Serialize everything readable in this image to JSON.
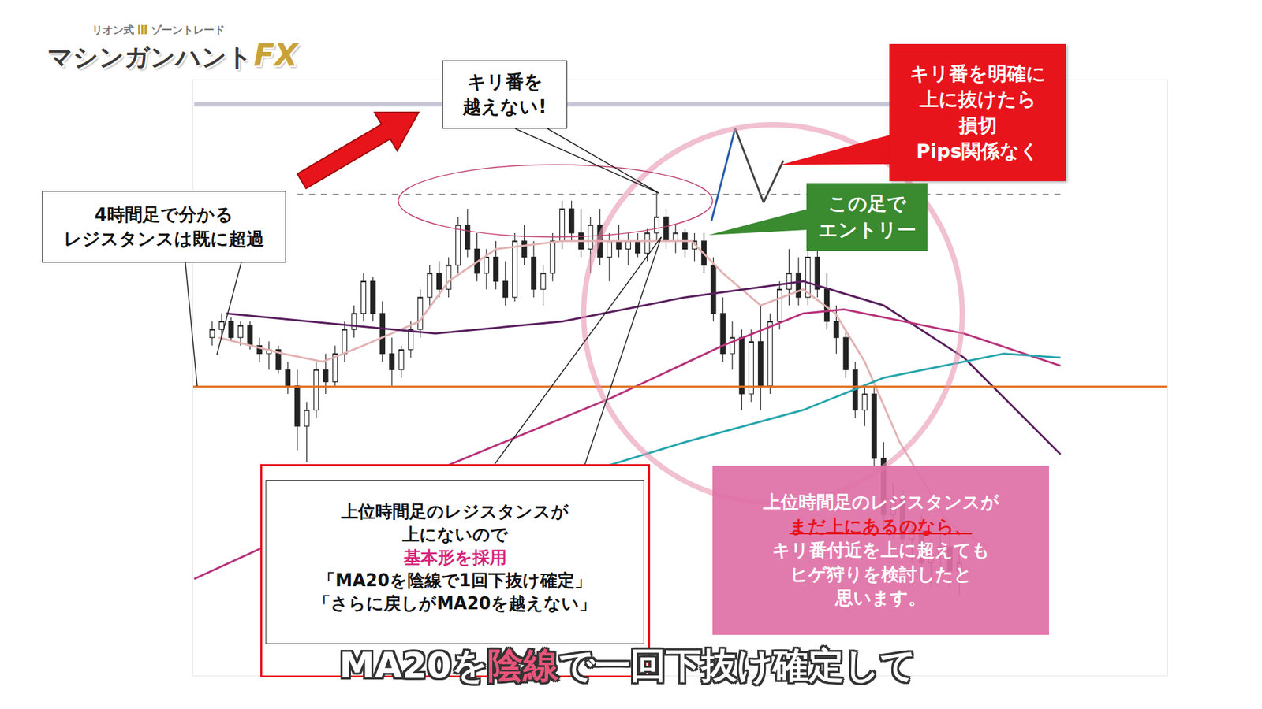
{
  "chart_data": {
    "type": "candlestick",
    "x": [
      1,
      2,
      3,
      4,
      5,
      6,
      7,
      8,
      9,
      10,
      11,
      12,
      13,
      14,
      15,
      16,
      17,
      18,
      19,
      20,
      21,
      22,
      23,
      24,
      25,
      26,
      27,
      28,
      29,
      30,
      31,
      32,
      33,
      34,
      35,
      36,
      37,
      38,
      39,
      40,
      41,
      42,
      43,
      44,
      45,
      46,
      47,
      48,
      49,
      50,
      51,
      52,
      53,
      54,
      55,
      56,
      57,
      58,
      59,
      60,
      61,
      62,
      63,
      64,
      65,
      66,
      67,
      68,
      69,
      70,
      71,
      72,
      73,
      74,
      75,
      76,
      77,
      78,
      79,
      80
    ],
    "open": [
      36,
      38,
      40,
      36,
      39,
      34,
      32,
      33,
      28,
      24,
      14,
      18,
      28,
      25,
      32,
      38,
      42,
      50,
      42,
      32,
      28,
      33,
      38,
      46,
      52,
      48,
      54,
      64,
      58,
      52,
      56,
      50,
      46,
      60,
      56,
      48,
      52,
      60,
      68,
      62,
      58,
      64,
      56,
      60,
      58,
      60,
      57,
      62,
      66,
      60,
      62,
      58,
      60,
      54,
      42,
      32,
      36,
      22,
      35,
      24,
      40,
      48,
      52,
      46,
      56,
      48,
      40,
      36,
      28,
      18,
      22,
      6,
      -8,
      -4,
      -14,
      -12,
      -20,
      -18,
      -16,
      -22
    ],
    "high": [
      40,
      42,
      41,
      40,
      40,
      36,
      35,
      34,
      30,
      28,
      20,
      30,
      32,
      34,
      40,
      44,
      52,
      51,
      45,
      36,
      34,
      40,
      48,
      54,
      55,
      56,
      66,
      68,
      62,
      58,
      60,
      55,
      62,
      64,
      60,
      54,
      62,
      70,
      70,
      68,
      66,
      68,
      62,
      64,
      62,
      62,
      63,
      72.4,
      68,
      64,
      63,
      62,
      62,
      56,
      46,
      40,
      38,
      38,
      44,
      42,
      50,
      58,
      56,
      58,
      58,
      52,
      44,
      38,
      30,
      24,
      24,
      10,
      0,
      -2,
      -10,
      -8,
      -14,
      -12,
      -10,
      -16
    ],
    "low": [
      34,
      36,
      35,
      34,
      33,
      30,
      28,
      27,
      22,
      8,
      5,
      16,
      22,
      24,
      30,
      36,
      40,
      40,
      30,
      24,
      26,
      31,
      36,
      44,
      46,
      46,
      52,
      56,
      50,
      48,
      48,
      44,
      45,
      54,
      46,
      44,
      50,
      58,
      60,
      56,
      52,
      54,
      50,
      56,
      54,
      56,
      55,
      60,
      58,
      57,
      56,
      55,
      52,
      40,
      30,
      28,
      18,
      20,
      18,
      22,
      38,
      44,
      44,
      44,
      46,
      38,
      32,
      26,
      16,
      14,
      4,
      -12,
      -14,
      -16,
      -20,
      -24,
      -26,
      -24,
      -26,
      -28
    ],
    "close": [
      38,
      40,
      36,
      39,
      34,
      32,
      33,
      28,
      24,
      14,
      18,
      28,
      25,
      32,
      38,
      42,
      50,
      42,
      32,
      28,
      33,
      38,
      46,
      52,
      48,
      54,
      64,
      58,
      52,
      56,
      50,
      46,
      60,
      56,
      48,
      52,
      60,
      68,
      62,
      58,
      64,
      56,
      60,
      58,
      60,
      57,
      62,
      66,
      60,
      62,
      58,
      60,
      54,
      42,
      32,
      36,
      22,
      35,
      24,
      40,
      48,
      52,
      46,
      56,
      48,
      40,
      36,
      28,
      18,
      22,
      6,
      -8,
      -4,
      -14,
      -12,
      -20,
      -18,
      -16,
      -22,
      -20
    ],
    "color": "#222222",
    "xlim": [
      -1,
      102
    ],
    "ylim": [
      -48,
      100
    ],
    "tick_labels": false,
    "grid": false,
    "series": [
      {
        "color": "#e2b3b3",
        "line_style": "solid",
        "x": [
          1.7,
          8.5,
          12.7,
          17,
          22.9,
          26,
          31,
          38,
          46.6,
          51.7,
          55,
          59,
          63.5,
          66.9,
          70,
          73.7,
          78.8,
          83
        ],
        "values": [
          36,
          32,
          30,
          34,
          40,
          50,
          58,
          60,
          60,
          60,
          52,
          44,
          48,
          42,
          30,
          10,
          -10,
          -16
        ]
      },
      {
        "color": "#5a1f5e",
        "line_style": "solid",
        "x": [
          2.5,
          24.6,
          38,
          51,
          63.5,
          72,
          80.5,
          90.7
        ],
        "values": [
          42,
          37,
          40,
          46,
          50,
          44,
          31,
          7
        ]
      },
      {
        "color": "#b8327a",
        "line_style": "solid",
        "x": [
          -0.9,
          19.5,
          43.2,
          55,
          63.5,
          67.8,
          80.5,
          90.7
        ],
        "values": [
          -24,
          -2,
          21,
          34,
          42,
          43,
          37,
          29
        ]
      },
      {
        "color": "#27a5ad",
        "line_style": "solid",
        "x": [
          39.8,
          51,
          63.5,
          72,
          84.7,
          90.7
        ],
        "values": [
          2,
          10,
          18,
          26,
          32,
          31
        ]
      },
      {
        "color": "#2a5caa",
        "line_style": "solid",
        "x": [
          53.8,
          56.3
        ],
        "values": [
          65,
          88
        ]
      },
      {
        "color": "#444444",
        "line_style": "solid",
        "x": [
          56.3,
          59.3,
          61.4
        ],
        "values": [
          88,
          69.6,
          80
        ]
      }
    ],
    "levels": [
      {
        "value": 94,
        "x": [
          -0.9,
          90.7
        ],
        "color": "#c6c6d6",
        "line_style": "double"
      },
      {
        "value": 71.6,
        "x": [
          10,
          90.7
        ],
        "color": "#777777",
        "line_style": "dashed"
      },
      {
        "value": 23.8,
        "x": [
          -1,
          102
        ],
        "color": "#e07020",
        "line_style": "solid"
      }
    ]
  },
  "logo": {
    "small": [
      "リオン式",
      "ゾーントレード"
    ],
    "big": "マシンガンハント",
    "accent": "FX"
  },
  "annotations": {
    "kiriban": [
      [
        "キリ番を"
      ],
      [
        "越えない!"
      ]
    ],
    "stoploss": [
      [
        "キリ番を明確に"
      ],
      [
        "上に抜けたら"
      ],
      [
        "損切"
      ],
      [
        "Pips関係なく"
      ]
    ],
    "entry": [
      [
        "この足で"
      ],
      [
        "エントリー"
      ]
    ],
    "h4": [
      [
        "4時間足で分かる"
      ],
      [
        "レジスタンスは既に超過"
      ]
    ],
    "basic": [
      [
        "上位時間足のレジスタンスが"
      ],
      [
        "上にないので"
      ],
      [
        {
          "text": "基本形を採用",
          "color": "#d6237a"
        }
      ],
      [
        "「MA20を陰線で1回下抜け確定」"
      ],
      [
        "「さらに戻しがMA20を越えない」"
      ]
    ],
    "upper": [
      [
        "上位時間足のレジスタンスが"
      ],
      [
        {
          "text": "まだ上にあるのなら、",
          "color": "#e8141c",
          "underline": true
        }
      ],
      [
        "キリ番付近を上に超えても"
      ],
      [
        "ヒゲ狩りを検討したと"
      ],
      [
        "思います。"
      ]
    ]
  },
  "caption": [
    {
      "text": "MA20を"
    },
    {
      "text": "陰線",
      "color": "#e8557a"
    },
    {
      "text": "で一回下抜け確定して"
    }
  ]
}
